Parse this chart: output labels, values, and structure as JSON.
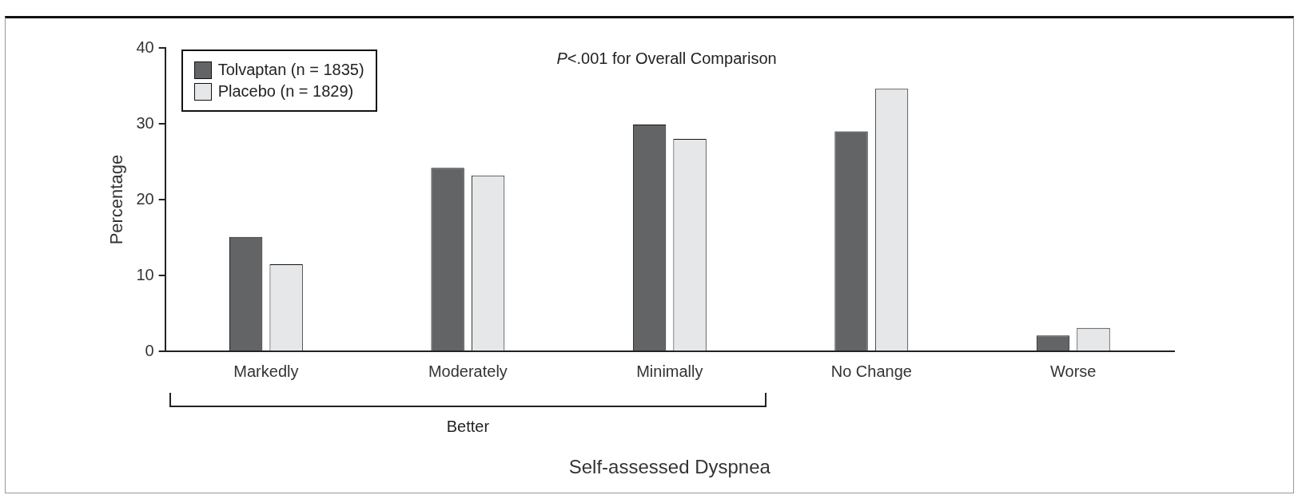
{
  "chart_data": {
    "type": "bar",
    "xlabel": "Self-assessed Dyspnea",
    "ylabel": "Percentage",
    "categories": [
      "Markedly",
      "Moderately",
      "Minimally",
      "No Change",
      "Worse"
    ],
    "series": [
      {
        "name": "Tolvaptan (n = 1835)",
        "color": "#636466",
        "values": [
          15.1,
          24.2,
          29.9,
          29,
          2.1
        ]
      },
      {
        "name": "Placebo (n = 1829)",
        "color": "#e6e7e8",
        "values": [
          11.5,
          23.2,
          28,
          34.6,
          3.1
        ]
      }
    ],
    "ylim": [
      0,
      40
    ],
    "yticks": [
      0,
      10,
      20,
      30,
      40
    ],
    "grid": false,
    "legend": "top left",
    "annotations": [
      "P<.001 for Overall Comparison",
      "Better"
    ]
  }
}
